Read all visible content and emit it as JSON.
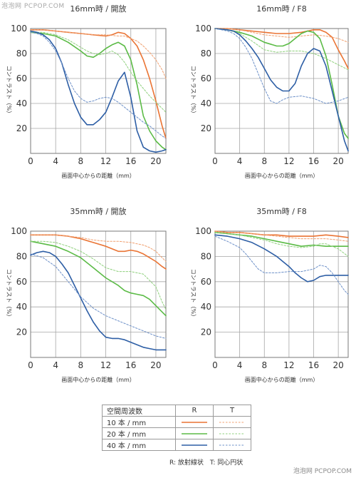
{
  "watermark_top": "泡泡网 PCPOP.COM",
  "watermark_bottom": "泡泡网 PCPOP.COM",
  "colors": {
    "r10": "#ea7434",
    "r20": "#5bbb46",
    "r40": "#2d5ea5",
    "t10": "#f0a070",
    "t20": "#8fd07d",
    "t40": "#6d90c8"
  },
  "chart_data": [
    {
      "type": "line",
      "title": "16mm時 / 開放",
      "xlabel": "画面中心からの距離（mm）",
      "ylabel": "コントラスト（%）",
      "xlim": [
        0,
        21.6
      ],
      "ylim": [
        0,
        100
      ],
      "xticks": [
        0,
        4,
        8,
        12,
        16,
        20
      ],
      "yticks": [
        20,
        40,
        60,
        80,
        100
      ],
      "series": [
        {
          "name": "10本/mm R",
          "style": "r10",
          "x": [
            0,
            2,
            4,
            6,
            8,
            10,
            12,
            13,
            14,
            15,
            16,
            17,
            18,
            19,
            20,
            21,
            21.6
          ],
          "y": [
            99,
            99,
            98,
            97,
            96,
            95,
            94,
            95,
            97,
            96,
            92,
            86,
            75,
            60,
            42,
            22,
            12
          ]
        },
        {
          "name": "10本/mm T",
          "style": "t10",
          "x": [
            0,
            2,
            4,
            6,
            8,
            10,
            12,
            14,
            15,
            16,
            17,
            18,
            19,
            20,
            21,
            21.6
          ],
          "y": [
            99,
            99,
            98,
            97,
            96,
            95,
            95,
            94,
            94,
            92,
            90,
            86,
            81,
            75,
            67,
            60
          ]
        },
        {
          "name": "20本/mm R",
          "style": "r20",
          "x": [
            0,
            2,
            4,
            6,
            8,
            9,
            10,
            11,
            12,
            13,
            14,
            15,
            16,
            17,
            18,
            19,
            20,
            21,
            21.6
          ],
          "y": [
            97,
            96,
            94,
            89,
            82,
            78,
            77,
            80,
            84,
            87,
            89,
            86,
            75,
            55,
            30,
            18,
            10,
            5,
            3
          ]
        },
        {
          "name": "20本/mm T",
          "style": "t20",
          "x": [
            0,
            2,
            4,
            6,
            8,
            9,
            10,
            11,
            12,
            13,
            14,
            15,
            16,
            17,
            18,
            19,
            20,
            21,
            21.6
          ],
          "y": [
            97,
            97,
            95,
            91,
            85,
            82,
            80,
            79,
            80,
            82,
            79,
            73,
            65,
            58,
            52,
            46,
            41,
            36,
            33
          ]
        },
        {
          "name": "40本/mm R",
          "style": "r40",
          "x": [
            0,
            1,
            2,
            3,
            4,
            5,
            6,
            7,
            8,
            9,
            10,
            11,
            12,
            13,
            14,
            15,
            16,
            17,
            18,
            19,
            20,
            21,
            21.6
          ],
          "y": [
            98,
            97,
            95,
            91,
            84,
            72,
            55,
            40,
            29,
            23,
            23,
            27,
            33,
            45,
            58,
            65,
            45,
            18,
            5,
            2,
            1,
            2,
            3
          ]
        },
        {
          "name": "40本/mm T",
          "style": "t40",
          "x": [
            0,
            1,
            2,
            3,
            4,
            5,
            6,
            7,
            8,
            9,
            10,
            11,
            12,
            13,
            14,
            15,
            16,
            17,
            18,
            19,
            20,
            21,
            21.6
          ],
          "y": [
            97,
            96,
            94,
            89,
            82,
            72,
            60,
            50,
            44,
            41,
            42,
            44,
            45,
            44,
            41,
            37,
            33,
            29,
            25,
            22,
            18,
            14,
            12
          ]
        }
      ]
    },
    {
      "type": "line",
      "title": "16mm時 / F8",
      "xlabel": "画面中心からの距離（mm）",
      "ylabel": "コントラスト（%）",
      "xlim": [
        0,
        21.6
      ],
      "ylim": [
        0,
        100
      ],
      "xticks": [
        0,
        4,
        8,
        12,
        16,
        20
      ],
      "yticks": [
        20,
        40,
        60,
        80,
        100
      ],
      "series": [
        {
          "name": "10本/mm R",
          "style": "r10",
          "x": [
            0,
            2,
            4,
            6,
            8,
            10,
            12,
            14,
            16,
            17,
            18,
            19,
            20,
            21,
            21.6
          ],
          "y": [
            100,
            100,
            99,
            98,
            97,
            96,
            96,
            97,
            99,
            99,
            97,
            93,
            83,
            74,
            68
          ]
        },
        {
          "name": "10本/mm T",
          "style": "t10",
          "x": [
            0,
            2,
            4,
            6,
            8,
            10,
            12,
            14,
            16,
            18,
            20,
            21.6
          ],
          "y": [
            100,
            100,
            99,
            97,
            95,
            94,
            93,
            94,
            95,
            94,
            92,
            89
          ]
        },
        {
          "name": "20本/mm R",
          "style": "r20",
          "x": [
            0,
            2,
            4,
            6,
            8,
            10,
            11,
            12,
            13,
            14,
            15,
            16,
            17,
            18,
            19,
            20,
            21,
            21.6
          ],
          "y": [
            100,
            99,
            97,
            94,
            89,
            86,
            86,
            88,
            92,
            96,
            98,
            97,
            92,
            78,
            55,
            30,
            16,
            12
          ]
        },
        {
          "name": "20本/mm T",
          "style": "t20",
          "x": [
            0,
            2,
            4,
            6,
            8,
            10,
            12,
            14,
            16,
            18,
            20,
            21.6
          ],
          "y": [
            100,
            99,
            96,
            90,
            83,
            81,
            82,
            82,
            80,
            76,
            71,
            67
          ]
        },
        {
          "name": "40本/mm R",
          "style": "r40",
          "x": [
            0,
            2,
            3,
            4,
            5,
            6,
            7,
            8,
            9,
            10,
            11,
            12,
            13,
            14,
            15,
            16,
            17,
            18,
            19,
            20,
            21,
            21.6
          ],
          "y": [
            100,
            99,
            98,
            95,
            90,
            84,
            77,
            68,
            59,
            53,
            50,
            50,
            56,
            70,
            80,
            84,
            82,
            70,
            50,
            30,
            10,
            2
          ]
        },
        {
          "name": "40本/mm T",
          "style": "t40",
          "x": [
            0,
            2,
            3,
            4,
            5,
            6,
            7,
            8,
            9,
            10,
            11,
            12,
            14,
            16,
            18,
            20,
            21.6
          ],
          "y": [
            100,
            98,
            96,
            92,
            85,
            76,
            64,
            52,
            42,
            40,
            43,
            45,
            46,
            44,
            40,
            42,
            45
          ]
        }
      ]
    },
    {
      "type": "line",
      "title": "35mm時 / 開放",
      "xlabel": "画面中心からの距離（mm）",
      "ylabel": "コントラスト（%）",
      "xlim": [
        0,
        21.6
      ],
      "ylim": [
        0,
        100
      ],
      "xticks": [
        0,
        4,
        8,
        12,
        16,
        20
      ],
      "yticks": [
        20,
        40,
        60,
        80,
        100
      ],
      "series": [
        {
          "name": "10本/mm R",
          "style": "r10",
          "x": [
            0,
            2,
            4,
            6,
            8,
            10,
            12,
            13,
            14,
            15,
            16,
            17,
            18,
            19,
            20,
            21,
            21.6
          ],
          "y": [
            97,
            97,
            97,
            96,
            94,
            91,
            88,
            86,
            84,
            84,
            85,
            84,
            82,
            79,
            76,
            72,
            70
          ]
        },
        {
          "name": "10本/mm T",
          "style": "t10",
          "x": [
            0,
            2,
            4,
            6,
            8,
            10,
            12,
            14,
            16,
            17,
            18,
            19,
            20,
            21,
            21.6
          ],
          "y": [
            97,
            97,
            97,
            96,
            95,
            93,
            92,
            92,
            91,
            90,
            89,
            87,
            84,
            79,
            76
          ]
        },
        {
          "name": "20本/mm R",
          "style": "r20",
          "x": [
            0,
            2,
            4,
            6,
            8,
            10,
            12,
            14,
            15,
            16,
            17,
            18,
            19,
            20,
            21,
            21.6
          ],
          "y": [
            92,
            90,
            88,
            84,
            79,
            71,
            63,
            57,
            53,
            51,
            50,
            49,
            46,
            41,
            36,
            33
          ]
        },
        {
          "name": "20本/mm T",
          "style": "t20",
          "x": [
            0,
            2,
            4,
            6,
            8,
            10,
            12,
            14,
            16,
            18,
            20,
            21,
            21.6
          ],
          "y": [
            92,
            92,
            91,
            88,
            84,
            78,
            71,
            68,
            68,
            66,
            56,
            44,
            38
          ]
        },
        {
          "name": "40本/mm R",
          "style": "r40",
          "x": [
            0,
            1,
            2,
            3,
            4,
            5,
            6,
            7,
            8,
            9,
            10,
            11,
            12,
            13,
            14,
            15,
            16,
            17,
            18,
            19,
            20,
            21,
            21.6
          ],
          "y": [
            81,
            83,
            84,
            83,
            80,
            74,
            67,
            57,
            47,
            37,
            28,
            21,
            16,
            15,
            15,
            14,
            12,
            10,
            8,
            7,
            6,
            6,
            6
          ]
        },
        {
          "name": "40本/mm T",
          "style": "t40",
          "x": [
            0,
            2,
            4,
            6,
            8,
            10,
            12,
            14,
            16,
            18,
            20,
            21.6
          ],
          "y": [
            82,
            79,
            72,
            60,
            48,
            39,
            33,
            29,
            25,
            21,
            17,
            15
          ]
        }
      ]
    },
    {
      "type": "line",
      "title": "35mm時 / F8",
      "xlabel": "画面中心からの距離（mm）",
      "ylabel": "コントラスト（%）",
      "xlim": [
        0,
        21.6
      ],
      "ylim": [
        0,
        100
      ],
      "xticks": [
        0,
        4,
        8,
        12,
        16,
        20
      ],
      "yticks": [
        20,
        40,
        60,
        80,
        100
      ],
      "series": [
        {
          "name": "10本/mm R",
          "style": "r10",
          "x": [
            0,
            2,
            4,
            6,
            8,
            10,
            12,
            14,
            16,
            18,
            20,
            21.6
          ],
          "y": [
            100,
            99,
            99,
            98,
            97,
            97,
            96,
            96,
            96,
            97,
            96,
            95
          ]
        },
        {
          "name": "10本/mm T",
          "style": "t10",
          "x": [
            0,
            2,
            4,
            6,
            8,
            10,
            12,
            14,
            16,
            18,
            20,
            21.6
          ],
          "y": [
            100,
            99,
            99,
            98,
            97,
            96,
            95,
            94,
            94,
            94,
            93,
            92
          ]
        },
        {
          "name": "20本/mm R",
          "style": "r20",
          "x": [
            0,
            2,
            4,
            6,
            8,
            10,
            12,
            14,
            16,
            18,
            20,
            21.6
          ],
          "y": [
            99,
            98,
            97,
            96,
            94,
            92,
            90,
            88,
            89,
            88,
            88,
            88
          ]
        },
        {
          "name": "20本/mm T",
          "style": "t20",
          "x": [
            0,
            2,
            4,
            6,
            8,
            10,
            12,
            14,
            16,
            17,
            18,
            20,
            21.6
          ],
          "y": [
            99,
            98,
            97,
            95,
            93,
            90,
            88,
            87,
            88,
            90,
            90,
            86,
            80
          ]
        },
        {
          "name": "40本/mm R",
          "style": "r40",
          "x": [
            0,
            2,
            4,
            6,
            8,
            10,
            11,
            12,
            13,
            14,
            15,
            16,
            17,
            18,
            20,
            21.6
          ],
          "y": [
            97,
            96,
            94,
            91,
            86,
            80,
            76,
            72,
            67,
            63,
            60,
            61,
            64,
            65,
            65,
            65
          ]
        },
        {
          "name": "40本/mm T",
          "style": "t40",
          "x": [
            0,
            2,
            4,
            5,
            6,
            7,
            8,
            9,
            10,
            12,
            14,
            16,
            17,
            18,
            19,
            20,
            21,
            21.6
          ],
          "y": [
            96,
            92,
            87,
            82,
            76,
            70,
            67,
            67,
            67,
            68,
            68,
            70,
            73,
            72,
            67,
            60,
            53,
            50
          ]
        }
      ]
    }
  ],
  "legend": {
    "header": "空間周波数",
    "col_r": "R",
    "col_t": "T",
    "rows": [
      {
        "label": "10 本 / mm",
        "r": "r10",
        "t": "t10"
      },
      {
        "label": "20 本 / mm",
        "r": "r20",
        "t": "t20"
      },
      {
        "label": "40 本 / mm",
        "r": "r40",
        "t": "t40"
      }
    ],
    "note": "R: 放射線状　T: 同心円状"
  }
}
